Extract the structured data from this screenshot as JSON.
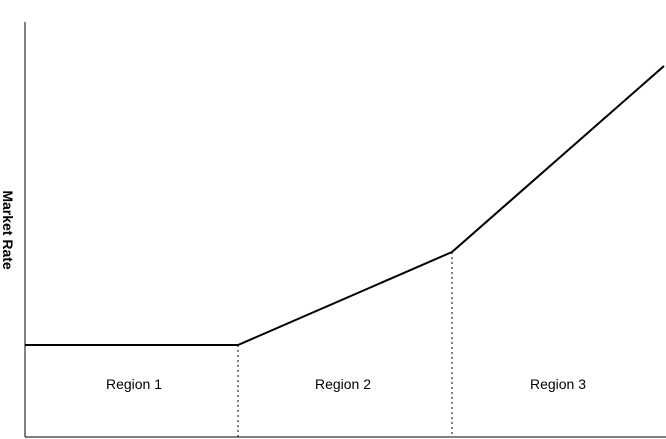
{
  "axis_label": "Market Rate",
  "regions": [
    "Region 1",
    "Region 2",
    "Region 3"
  ]
}
